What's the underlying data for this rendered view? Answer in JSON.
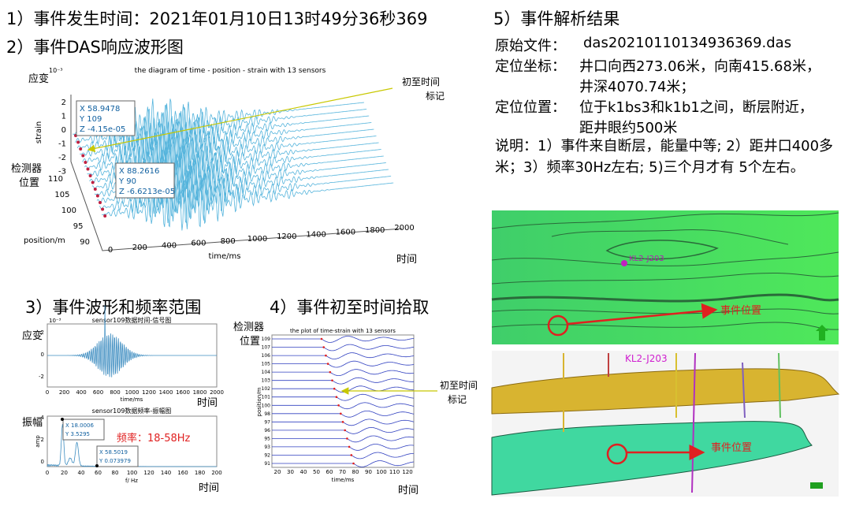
{
  "header1": "1）事件发生时间：2021年01月10日13时49分36秒369",
  "header2": "2）事件DAS响应波形图",
  "plot3d": {
    "title": "the diagram of time - position - strain with 13 sensors",
    "zlabel": "strain",
    "zexp": "10⁻³",
    "zticks": [
      "2",
      "1",
      "0",
      "-1",
      "-2",
      "-3"
    ],
    "yticks": [
      "110",
      "105",
      "100",
      "95",
      "90"
    ],
    "ylabel": "position/m",
    "xticks": [
      "0",
      "200",
      "400",
      "600",
      "800",
      "1000",
      "1200",
      "1400",
      "1600",
      "1800",
      "2000"
    ],
    "xlabel": "time/ms",
    "tips": [
      [
        "X 58.9478",
        "Y 109",
        "Z -4.15e-05"
      ],
      [
        "X 88.2616",
        "Y 90",
        "Z -6.6213e-05"
      ]
    ],
    "note_strain": "应变",
    "note_sensor": [
      "检测器",
      "位置"
    ],
    "note_time": "时间",
    "note_first": [
      "初至时间",
      "标记"
    ]
  },
  "section3": {
    "title": "3）事件波形和频率范围",
    "plot_a": {
      "title": "sensor109数据时间-信号图",
      "exp": "10⁻³",
      "yticks": [
        "2",
        "0",
        "-2"
      ],
      "xticks": [
        "0",
        "200",
        "400",
        "600",
        "800",
        "1000",
        "1200",
        "1400",
        "1600",
        "1800",
        "2000"
      ],
      "xlabel": "time/ms",
      "note_y": "应变",
      "note_x": "时间"
    },
    "plot_b": {
      "title": "sensor109数据频率-振幅图",
      "ylabel": "amp",
      "yticks": [
        "4",
        "2",
        "0"
      ],
      "xticks": [
        "0",
        "20",
        "40",
        "60",
        "80",
        "100",
        "120",
        "140",
        "160",
        "180",
        "200"
      ],
      "xlabel": "f/ Hz",
      "note_y": "振幅",
      "note_x": "时间",
      "tips": [
        [
          "X 18.0006",
          "Y 3.5295"
        ],
        [
          "X 58.5019",
          "Y 0.073979"
        ]
      ],
      "freq": "频率：18-58Hz"
    }
  },
  "section4": {
    "title": "4）事件初至时间拾取",
    "plot_title": "the plot of time-strain with 13 sensors",
    "yticks": [
      "109",
      "107",
      "106",
      "105",
      "104",
      "103",
      "102",
      "101",
      "100",
      "98",
      "97",
      "96",
      "95",
      "93",
      "92",
      "91"
    ],
    "xticks": [
      "20",
      "30",
      "40",
      "50",
      "60",
      "70",
      "80",
      "90",
      "100",
      "110",
      "120"
    ],
    "xlabel": "time/ms",
    "ylabel": "position/m",
    "note_sensor": [
      "检测器",
      "位置"
    ],
    "note_first": [
      "初至时间",
      "标记"
    ],
    "note_time": "时间"
  },
  "section5": {
    "title": "5）事件解析结果",
    "rows": [
      {
        "label": "原始文件：",
        "value": [
          "das20210110134936369.das"
        ]
      },
      {
        "label": "定位坐标：",
        "value": [
          "井口向西273.06米，向南415.68米，",
          "井深4070.74米；"
        ]
      },
      {
        "label": "定位位置：",
        "value": [
          "位于k1bs3和k1b1之间，断层附近，",
          "距井眼约500米"
        ]
      }
    ],
    "note": "说明：1）事件来自断层，能量中等; 2）距井口400多米；3）频率30Hz左右; 5)三个月才有 5个左右。",
    "map1": {
      "well": "KL2-J203",
      "event": "事件位置"
    },
    "map2": {
      "well": "KL2-J203",
      "event": "事件位置"
    }
  }
}
